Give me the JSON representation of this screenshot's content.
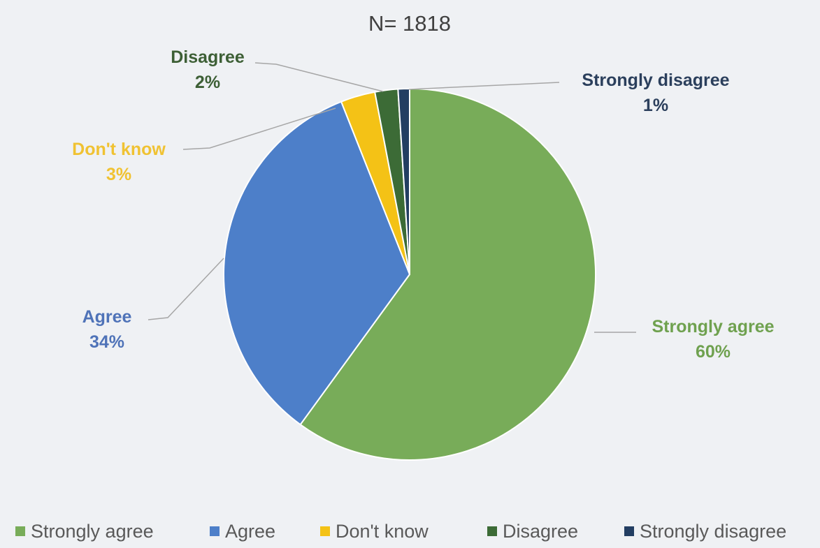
{
  "chart_data": {
    "type": "pie",
    "title": "N= 1818",
    "categories": [
      "Strongly agree",
      "Agree",
      "Don't know",
      "Disagree",
      "Strongly disagree"
    ],
    "values": [
      60,
      34,
      3,
      2,
      1
    ],
    "value_labels": [
      "60%",
      "34%",
      "3%",
      "2%",
      "1%"
    ],
    "colors": [
      "#78ac59",
      "#4d7fc9",
      "#f4c216",
      "#3c6b36",
      "#233e62"
    ],
    "label_colors": [
      "#6fa14f",
      "#4f73b8",
      "#f0c232",
      "#3d5f35",
      "#2b3f5c"
    ],
    "legend_position": "bottom"
  }
}
